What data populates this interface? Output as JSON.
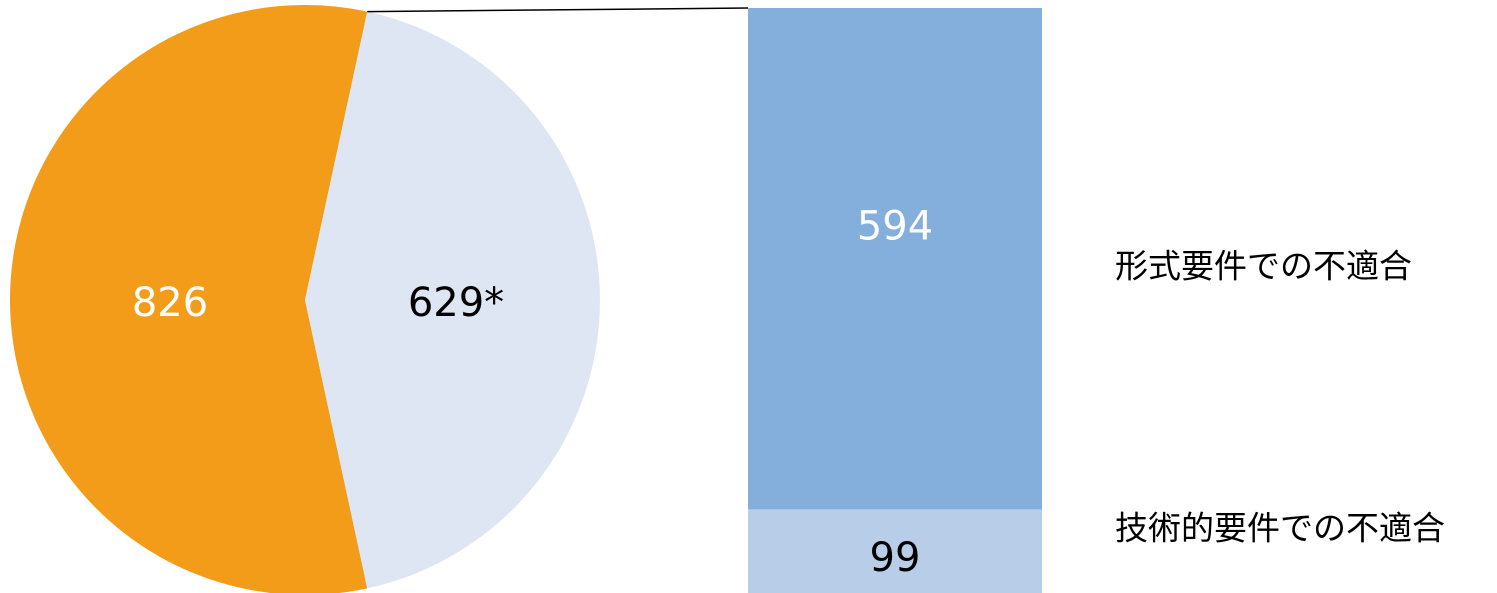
{
  "chart_data": {
    "type": "bar-of-pie",
    "pie": {
      "slices": [
        {
          "value": 826,
          "label": "826",
          "color": "#F39C1A",
          "label_color": "#ffffff"
        },
        {
          "value": 629,
          "label": "629*",
          "color": "#DFE6F3",
          "label_color": "#000000"
        }
      ]
    },
    "bar": {
      "segments": [
        {
          "value": 594,
          "label": "594",
          "category": "形式要件での不適合",
          "color": "#84AEDB",
          "label_color": "#ffffff"
        },
        {
          "value": 99,
          "label": "99",
          "category": "技術的要件での不適合",
          "color": "#B8CDE8",
          "label_color": "#000000"
        }
      ]
    }
  }
}
